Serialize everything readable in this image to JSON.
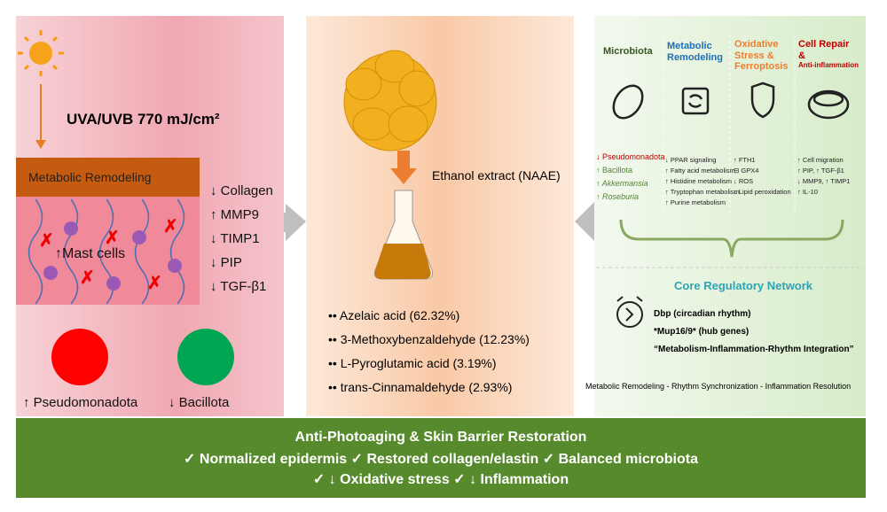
{
  "left": {
    "uv": "UVA/UVB 770 mJ/cm²",
    "remodeling": "Metabolic Remodeling",
    "mast_cells": "↑Mast cells",
    "markers": [
      "↓ Collagen",
      "↑ MMP9",
      "↓ TIMP1",
      "↓ PIP",
      "↓ TGF-β1"
    ],
    "microbes": [
      "↑ Pseudomonadota",
      "↓ Bacillota"
    ]
  },
  "middle": {
    "extract": "Ethanol extract (NAAE)",
    "compounds": [
      "•• Azelaic acid (62.32%)",
      "•• 3-Methoxybenzaldehyde (12.23%)",
      "•• L-Pyroglutamic acid (3.19%)",
      "•• trans-Cinnamaldehyde (2.93%)"
    ]
  },
  "right": {
    "columns": [
      {
        "title": "Microbiota",
        "items": [
          "↓ Pseudomonadota",
          "↑ Bacillota",
          "↑ Akkermansia",
          "↑ Roseburia"
        ]
      },
      {
        "title": "Metabolic Remodeling",
        "items": [
          "↓ PPAR signaling",
          "↑ Fatty acid metabolism",
          "↑ Histidine metabolism",
          "↑ Tryptophan metabolism",
          "↑ Purine metabolism"
        ]
      },
      {
        "title": "Oxidative Stress & Ferroptosis",
        "items": [
          "↑ FTH1",
          "⊟ GPX4",
          "↓ ROS",
          "↓ Lipid peroxidation"
        ]
      },
      {
        "title": "Cell Repair",
        "amp": "&",
        "subtitle": "Anti-inflammation",
        "items": [
          "↑ Cell migration",
          "↑ PIP, ↑ TGF-β1",
          "↓ MMP9, ↑ TIMP1",
          "↑ IL-10"
        ]
      }
    ],
    "core": {
      "title": "Core Regulatory Network",
      "items": [
        "Dbp (circadian rhythm)",
        "*Mup16/9* (hub genes)",
        "“Metabolism-Inflammation-Rhythm Integration”"
      ],
      "footer": "Metabolic Remodeling - Rhythm Synchronization - Inflammation Resolution"
    }
  },
  "bottom": {
    "title": "Anti-Photoaging & Skin Barrier Restoration",
    "lines": [
      "✓ Normalized epidermis ✓ Restored collagen/elastin ✓ Balanced microbiota",
      "✓ ↓ Oxidative stress ✓ ↓ Inflammation"
    ]
  }
}
